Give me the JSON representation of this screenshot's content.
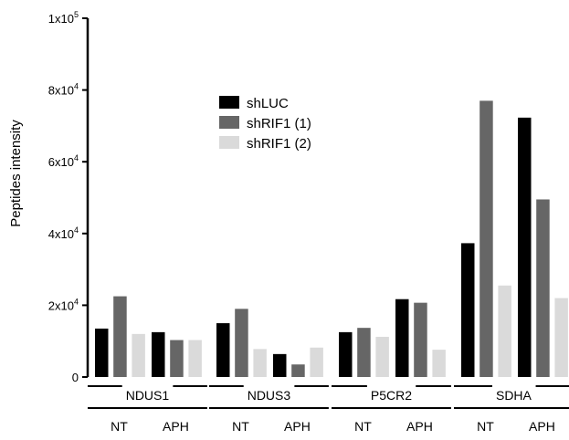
{
  "chart_data": {
    "type": "bar",
    "title": "",
    "ylabel": "Peptides intensity",
    "xlabel": "",
    "ylim": [
      0,
      100000
    ],
    "y_ticks": [
      {
        "value": 0,
        "base": "0",
        "exp": ""
      },
      {
        "value": 20000,
        "base": "2x10",
        "exp": "4"
      },
      {
        "value": 40000,
        "base": "4x10",
        "exp": "4"
      },
      {
        "value": 60000,
        "base": "6x10",
        "exp": "4"
      },
      {
        "value": 80000,
        "base": "8x10",
        "exp": "4"
      },
      {
        "value": 100000,
        "base": "1x10",
        "exp": "5"
      }
    ],
    "groups": [
      {
        "protein": "NDUS1",
        "conditions": [
          {
            "label": "NT",
            "values": [
              13500,
              22500,
              12000
            ]
          },
          {
            "label": "APH",
            "values": [
              12500,
              10300,
              10300
            ]
          }
        ]
      },
      {
        "protein": "NDUS3",
        "conditions": [
          {
            "label": "NT",
            "values": [
              15000,
              19000,
              7800
            ]
          },
          {
            "label": "APH",
            "values": [
              6400,
              3500,
              8200
            ]
          }
        ]
      },
      {
        "protein": "P5CR2",
        "conditions": [
          {
            "label": "NT",
            "values": [
              12500,
              13700,
              11200
            ]
          },
          {
            "label": "APH",
            "values": [
              21700,
              20700,
              7600
            ]
          }
        ]
      },
      {
        "protein": "SDHA",
        "conditions": [
          {
            "label": "NT",
            "values": [
              37300,
              77000,
              25500
            ]
          },
          {
            "label": "APH",
            "values": [
              72300,
              49500,
              22000
            ]
          }
        ]
      }
    ],
    "series": [
      {
        "name": "shLUC",
        "color": "#000000"
      },
      {
        "name": "shRIF1 (1)",
        "color": "#666666"
      },
      {
        "name": "shRIF1 (2)",
        "color": "#dadada"
      }
    ],
    "legend_position": "top-center",
    "grid": false
  }
}
